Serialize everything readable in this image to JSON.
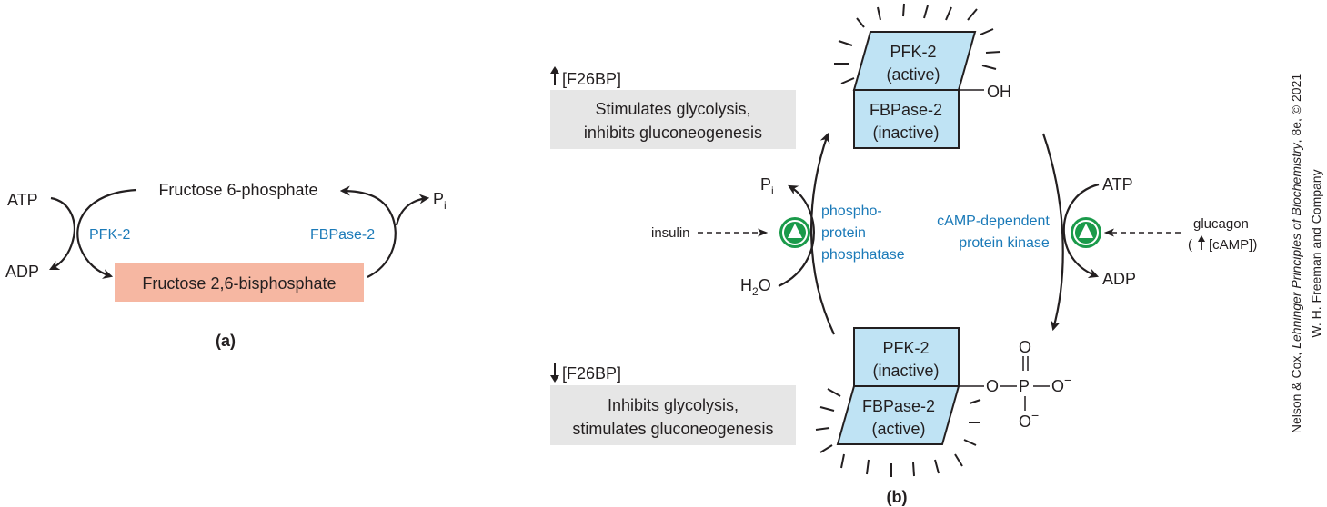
{
  "panel_a": {
    "label": "(a)",
    "fructose6p": "Fructose 6-phosphate",
    "fructose26bp": "Fructose 2,6-bisphosphate",
    "atp": "ATP",
    "adp": "ADP",
    "pfk2": "PFK-2",
    "fbpase2": "FBPase-2",
    "pi_main": "P",
    "pi_sub": "i",
    "colors": {
      "bisphosphate_box": "#f6b7a2",
      "enzyme_text": "#1b7ab8"
    }
  },
  "panel_b": {
    "label": "(b)",
    "up_f26bp": "[F26BP]",
    "up_effect_line1": "Stimulates glycolysis,",
    "up_effect_line2": "inhibits gluconeogenesis",
    "down_f26bp": "[F26BP]",
    "down_effect_line1": "Inhibits glycolysis,",
    "down_effect_line2": "stimulates gluconeogenesis",
    "top_enzyme": {
      "pfk2_line1": "PFK-2",
      "pfk2_line2": "(active)",
      "fbpase2_line1": "FBPase-2",
      "fbpase2_line2": "(inactive)",
      "oh": "OH"
    },
    "bottom_enzyme": {
      "pfk2_line1": "PFK-2",
      "pfk2_line2": "(inactive)",
      "fbpase2_line1": "FBPase-2",
      "fbpase2_line2": "(active)"
    },
    "phosphate": {
      "o_top": "O",
      "o_left": "O",
      "p": "P",
      "o_right": "O",
      "o_bottom": "O",
      "minus": "−"
    },
    "left_pathway": {
      "pi_main": "P",
      "pi_sub": "i",
      "h2o_h": "H",
      "h2o_2": "2",
      "h2o_o": "O",
      "insulin": "insulin",
      "enzyme_line1": "phospho-",
      "enzyme_line2": "protein",
      "enzyme_line3": "phosphatase"
    },
    "right_pathway": {
      "atp": "ATP",
      "adp": "ADP",
      "glucagon": "glucagon",
      "camp": "[cAMP])",
      "camp_open": "(",
      "enzyme_line1": "cAMP-dependent",
      "enzyme_line2": "protein kinase"
    },
    "colors": {
      "enzyme_box": "#bfe3f4",
      "effect_box": "#e6e6e6",
      "activator": "#1a9a4a",
      "enzyme_text": "#1b7ab8"
    }
  },
  "credit": {
    "line1_a": "Nelson & Cox, ",
    "line1_b": "Lehninger Principles of Biochemistry",
    "line1_c": ", 8e, © 2021",
    "line2": "W. H. Freeman and Company"
  }
}
